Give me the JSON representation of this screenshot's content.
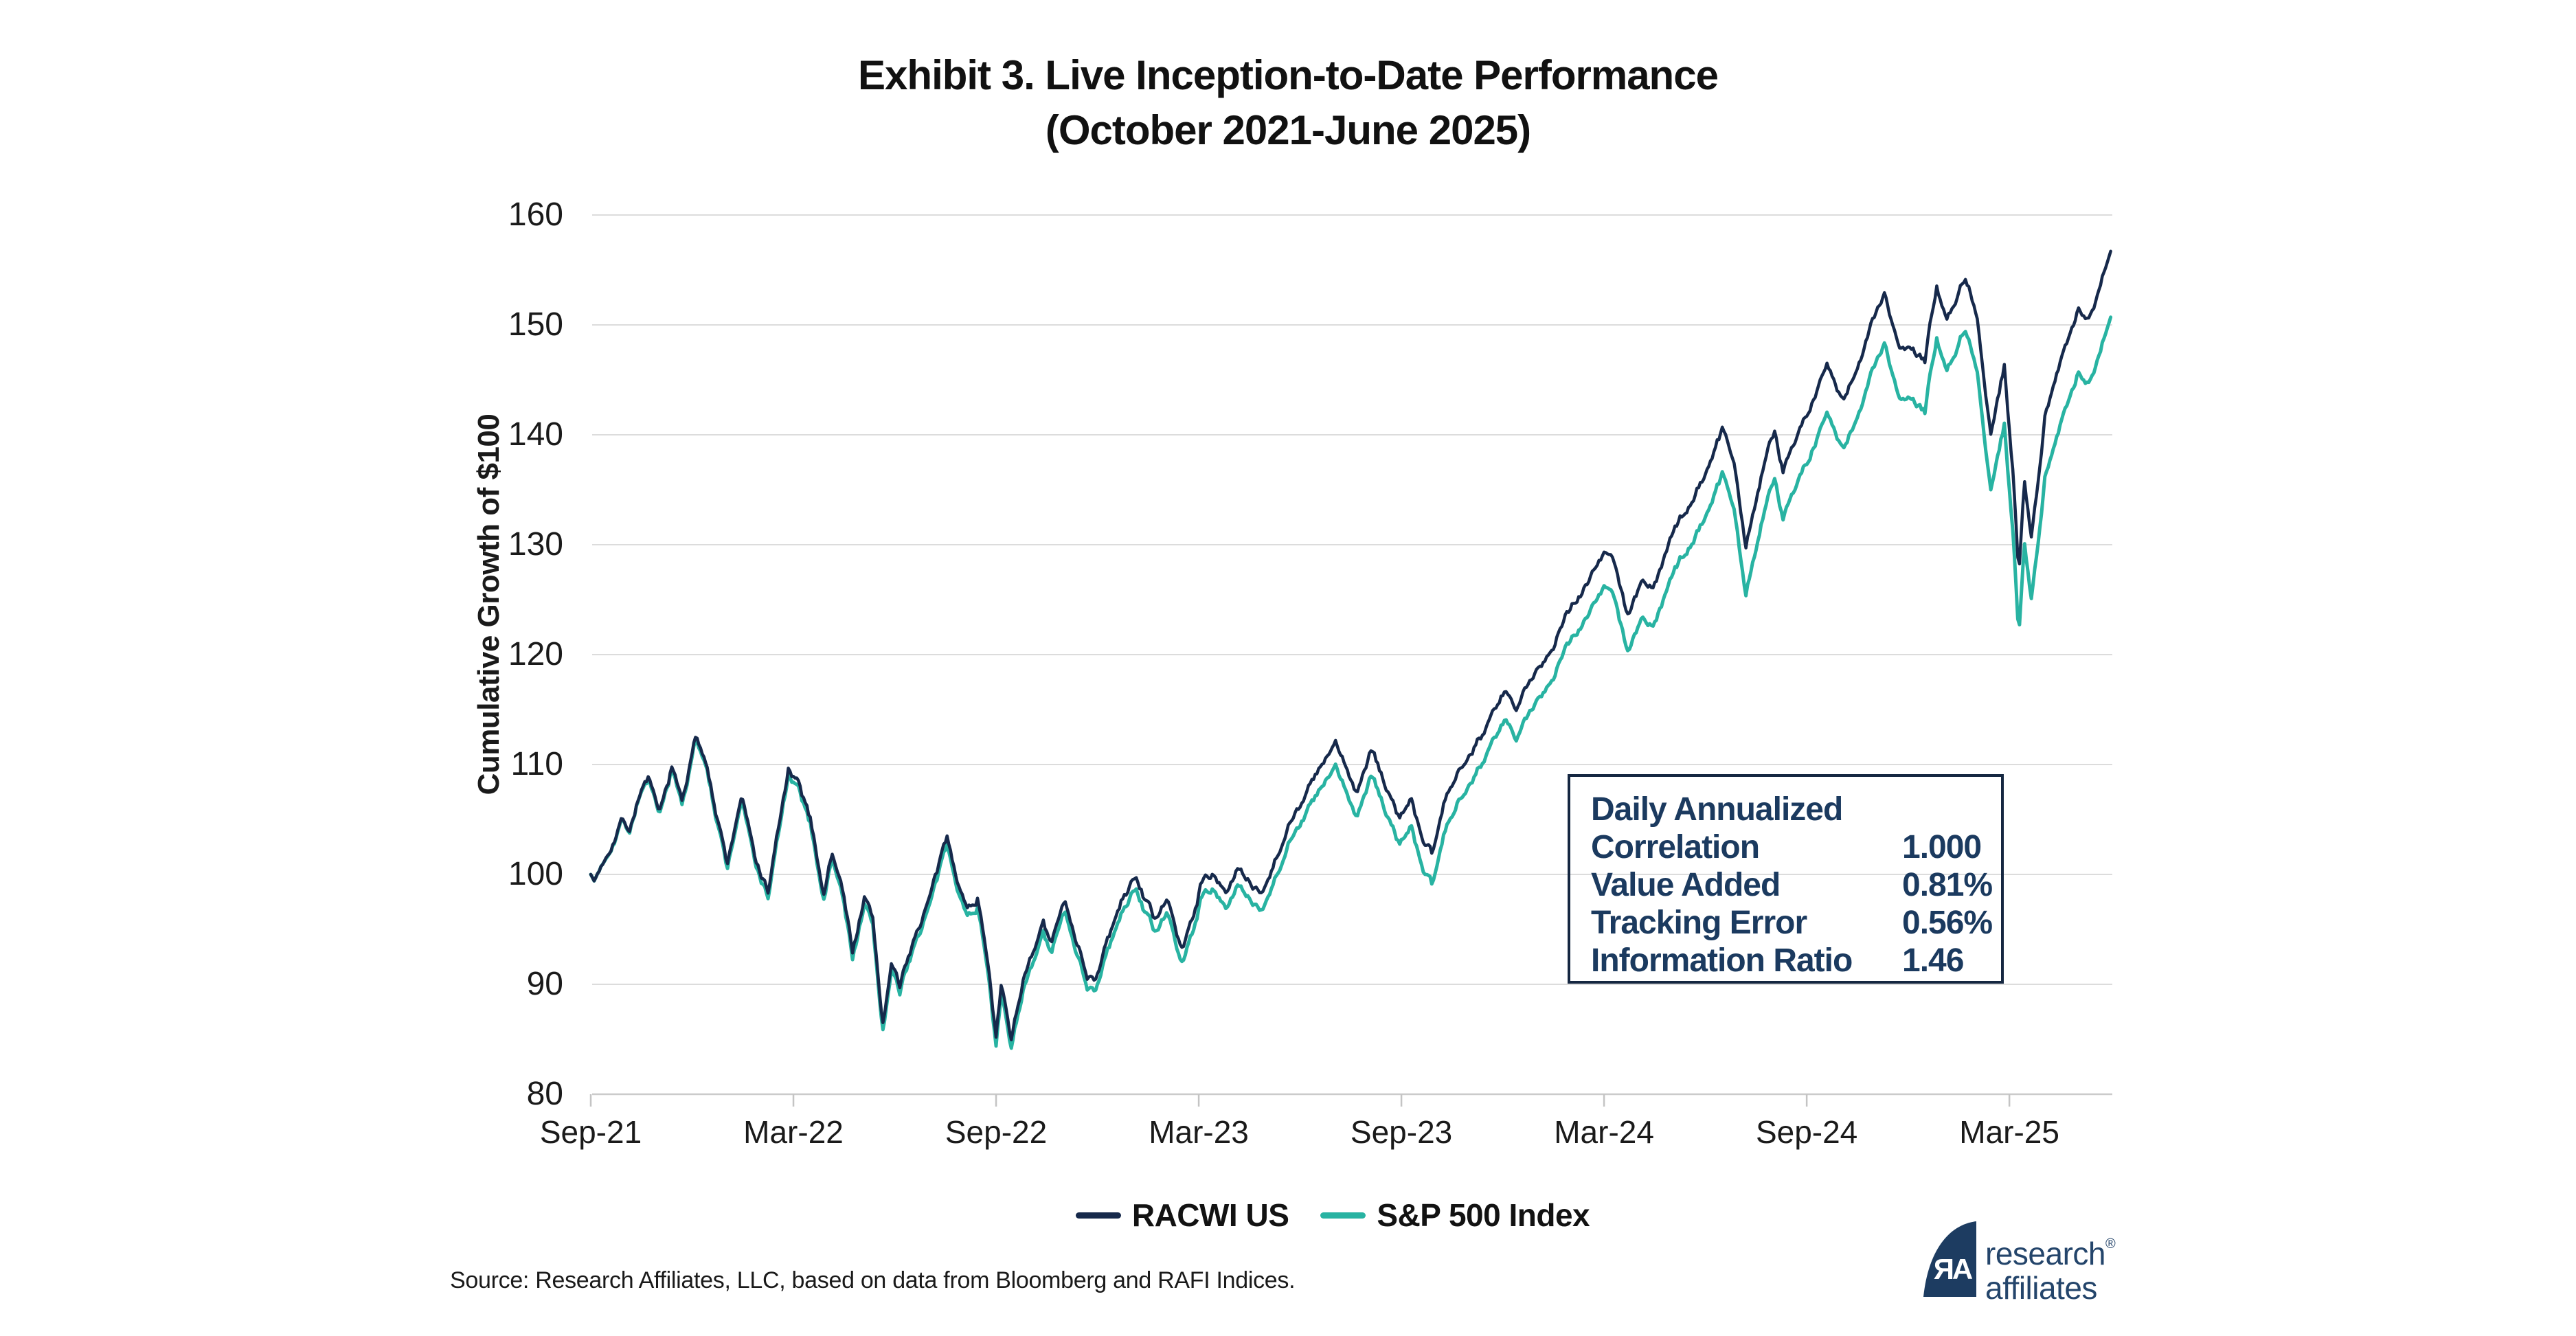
{
  "title": {
    "line1": "Exhibit 3. Live Inception-to-Date Performance",
    "line2": "(October 2021-June 2025)"
  },
  "y_axis": {
    "title": "Cumulative Growth of $100",
    "ticks": [
      80,
      90,
      100,
      110,
      120,
      130,
      140,
      150,
      160
    ]
  },
  "x_axis": {
    "ticks": [
      {
        "label": "Sep-21",
        "t": 0
      },
      {
        "label": "Mar-22",
        "t": 6
      },
      {
        "label": "Sep-22",
        "t": 12
      },
      {
        "label": "Mar-23",
        "t": 18
      },
      {
        "label": "Sep-23",
        "t": 24
      },
      {
        "label": "Mar-24",
        "t": 30
      },
      {
        "label": "Sep-24",
        "t": 36
      },
      {
        "label": "Mar-25",
        "t": 42
      }
    ]
  },
  "stats_box": {
    "header": "Daily Annualized",
    "rows": [
      {
        "label": "Correlation",
        "value": "1.000"
      },
      {
        "label": "Value Added",
        "value": "0.81%"
      },
      {
        "label": "Tracking Error",
        "value": "0.56%"
      },
      {
        "label": "Information Ratio",
        "value": "1.46"
      }
    ]
  },
  "legend": [
    {
      "label": "RACWI US",
      "color": "#16294B"
    },
    {
      "label": "S&P 500 Index",
      "color": "#28B3A2"
    }
  ],
  "source": "Source: Research Affiliates, LLC, based on data from Bloomberg and RAFI Indices.",
  "logo": {
    "word1": "research",
    "word2": "affiliates",
    "reg": "®",
    "monogram": "ЯA",
    "color": "#1d3c61"
  },
  "chart_data": {
    "type": "line",
    "title": "Exhibit 3. Live Inception-to-Date Performance (October 2021-June 2025)",
    "xlabel": "",
    "ylabel": "Cumulative Growth of $100",
    "x_unit": "months since Sep-2021 inception (Oct 2021 - Jun 2025)",
    "xlim": [
      0,
      45
    ],
    "ylim": [
      80,
      160
    ],
    "grid": "horizontal",
    "legend_position": "bottom-center",
    "series": [
      {
        "name": "RACWI US",
        "color": "#16294B",
        "points": [
          [
            0,
            100
          ],
          [
            0.1,
            99.4
          ],
          [
            0.35,
            101
          ],
          [
            0.6,
            102.9
          ],
          [
            0.93,
            105.4
          ],
          [
            1.15,
            104.3
          ],
          [
            1.45,
            107.6
          ],
          [
            1.7,
            109
          ],
          [
            2.03,
            105
          ],
          [
            2.4,
            109.5
          ],
          [
            2.7,
            106.6
          ],
          [
            3.1,
            112.3
          ],
          [
            3.45,
            110.3
          ],
          [
            3.7,
            105.9
          ],
          [
            4.05,
            100.8
          ],
          [
            4.47,
            107.4
          ],
          [
            4.85,
            101.4
          ],
          [
            5.25,
            98.4
          ],
          [
            5.55,
            104
          ],
          [
            5.85,
            109.3
          ],
          [
            6.2,
            107.5
          ],
          [
            6.5,
            104.8
          ],
          [
            6.9,
            98.4
          ],
          [
            7.15,
            102
          ],
          [
            7.45,
            98.6
          ],
          [
            7.75,
            93.1
          ],
          [
            8.1,
            98
          ],
          [
            8.35,
            95.8
          ],
          [
            8.64,
            86.4
          ],
          [
            8.9,
            91.9
          ],
          [
            9.15,
            89.6
          ],
          [
            9.6,
            94.4
          ],
          [
            10.1,
            98.5
          ],
          [
            10.55,
            102.9
          ],
          [
            10.9,
            99.5
          ],
          [
            11.15,
            96.9
          ],
          [
            11.45,
            98.1
          ],
          [
            11.8,
            91.6
          ],
          [
            12,
            85.6
          ],
          [
            12.15,
            89.8
          ],
          [
            12.45,
            85.1
          ],
          [
            12.8,
            90.7
          ],
          [
            13.1,
            92.5
          ],
          [
            13.4,
            95.3
          ],
          [
            13.63,
            93.3
          ],
          [
            14.05,
            97.4
          ],
          [
            14.4,
            94.2
          ],
          [
            14.7,
            91.1
          ],
          [
            14.97,
            90.8
          ],
          [
            15.3,
            93.9
          ],
          [
            15.7,
            97.2
          ],
          [
            16.15,
            100.1
          ],
          [
            16.4,
            97.8
          ],
          [
            16.7,
            96
          ],
          [
            17.05,
            97.5
          ],
          [
            17.5,
            93.2
          ],
          [
            17.8,
            95.9
          ],
          [
            18.05,
            99
          ],
          [
            18.4,
            100.1
          ],
          [
            18.8,
            98.6
          ],
          [
            19.2,
            100.5
          ],
          [
            19.55,
            98.9
          ],
          [
            19.9,
            98.7
          ],
          [
            20.3,
            101.9
          ],
          [
            20.75,
            105.5
          ],
          [
            21.05,
            106.9
          ],
          [
            21.65,
            109.8
          ],
          [
            22.05,
            111.6
          ],
          [
            22.4,
            109.2
          ],
          [
            22.67,
            107.5
          ],
          [
            23.1,
            111.1
          ],
          [
            23.55,
            107.9
          ],
          [
            23.95,
            105
          ],
          [
            24.3,
            107.1
          ],
          [
            24.6,
            103.2
          ],
          [
            24.92,
            101.4
          ],
          [
            25.3,
            106.4
          ],
          [
            26,
            111.5
          ],
          [
            26.6,
            114.2
          ],
          [
            27.1,
            116.5
          ],
          [
            27.4,
            114.7
          ],
          [
            28,
            118.4
          ],
          [
            28.55,
            121.6
          ],
          [
            28.85,
            123.8
          ],
          [
            29.25,
            125.6
          ],
          [
            30,
            129.3
          ],
          [
            30.33,
            128.3
          ],
          [
            30.7,
            123.5
          ],
          [
            31.1,
            127
          ],
          [
            31.45,
            126.1
          ],
          [
            32.05,
            130.9
          ],
          [
            32.65,
            134.4
          ],
          [
            33.2,
            138.2
          ],
          [
            33.52,
            140.6
          ],
          [
            33.85,
            137.4
          ],
          [
            34.2,
            129.8
          ],
          [
            34.75,
            137.7
          ],
          [
            35.05,
            140.5
          ],
          [
            35.3,
            137
          ],
          [
            35.65,
            139.9
          ],
          [
            36.05,
            142.4
          ],
          [
            36.6,
            146.4
          ],
          [
            37.1,
            142.8
          ],
          [
            37.55,
            146.8
          ],
          [
            38.05,
            151
          ],
          [
            38.3,
            152.5
          ],
          [
            38.75,
            147.3
          ],
          [
            39.05,
            148
          ],
          [
            39.5,
            146.7
          ],
          [
            39.85,
            153.7
          ],
          [
            40.15,
            150.7
          ],
          [
            40.68,
            154.7
          ],
          [
            41.05,
            151.1
          ],
          [
            41.45,
            140.4
          ],
          [
            41.85,
            146.2
          ],
          [
            42.1,
            136.5
          ],
          [
            42.28,
            127.5
          ],
          [
            42.45,
            135.6
          ],
          [
            42.65,
            130.2
          ],
          [
            43.05,
            141.8
          ],
          [
            43.35,
            144.4
          ],
          [
            43.7,
            148.3
          ],
          [
            44.05,
            151.8
          ],
          [
            44.35,
            150.5
          ],
          [
            44.75,
            154.4
          ],
          [
            45,
            156.7
          ]
        ]
      },
      {
        "name": "S&P 500 Index",
        "color": "#28B3A2",
        "points": [
          [
            0,
            100
          ],
          [
            0.1,
            99.4
          ],
          [
            0.35,
            101
          ],
          [
            0.6,
            102.8
          ],
          [
            0.93,
            105.3
          ],
          [
            1.15,
            104.2
          ],
          [
            1.45,
            107.5
          ],
          [
            1.7,
            108.8
          ],
          [
            2.03,
            104.8
          ],
          [
            2.4,
            109.3
          ],
          [
            2.7,
            106.3
          ],
          [
            3.1,
            112
          ],
          [
            3.45,
            110
          ],
          [
            3.7,
            105.5
          ],
          [
            4.05,
            100.4
          ],
          [
            4.47,
            107
          ],
          [
            4.85,
            101
          ],
          [
            5.25,
            97.9
          ],
          [
            5.55,
            103.5
          ],
          [
            5.85,
            108.8
          ],
          [
            6.2,
            107
          ],
          [
            6.5,
            104.3
          ],
          [
            6.9,
            97.9
          ],
          [
            7.15,
            101.5
          ],
          [
            7.45,
            98
          ],
          [
            7.75,
            92.5
          ],
          [
            8.1,
            97.4
          ],
          [
            8.35,
            95.2
          ],
          [
            8.64,
            85.8
          ],
          [
            8.9,
            91.3
          ],
          [
            9.15,
            89
          ],
          [
            9.6,
            93.8
          ],
          [
            10.1,
            97.8
          ],
          [
            10.55,
            102.2
          ],
          [
            10.9,
            98.8
          ],
          [
            11.15,
            96.2
          ],
          [
            11.45,
            97.3
          ],
          [
            11.8,
            90.8
          ],
          [
            12,
            84.8
          ],
          [
            12.15,
            89
          ],
          [
            12.45,
            84.3
          ],
          [
            12.8,
            89.8
          ],
          [
            13.1,
            91.6
          ],
          [
            13.4,
            94.4
          ],
          [
            13.63,
            92.4
          ],
          [
            14.05,
            96.5
          ],
          [
            14.4,
            93.2
          ],
          [
            14.7,
            90.1
          ],
          [
            14.97,
            89.8
          ],
          [
            15.3,
            92.9
          ],
          [
            15.7,
            96.1
          ],
          [
            16.15,
            99
          ],
          [
            16.4,
            96.7
          ],
          [
            16.7,
            94.8
          ],
          [
            17.05,
            96.3
          ],
          [
            17.5,
            91.9
          ],
          [
            17.8,
            94.6
          ],
          [
            18.05,
            97.7
          ],
          [
            18.4,
            98.7
          ],
          [
            18.8,
            97.2
          ],
          [
            19.2,
            99
          ],
          [
            19.55,
            97.4
          ],
          [
            19.9,
            97.1
          ],
          [
            20.3,
            100.3
          ],
          [
            20.75,
            103.8
          ],
          [
            21.05,
            105.2
          ],
          [
            21.65,
            107.8
          ],
          [
            22.05,
            109.5
          ],
          [
            22.4,
            107
          ],
          [
            22.67,
            105.3
          ],
          [
            23.1,
            108.8
          ],
          [
            23.55,
            105.6
          ],
          [
            23.95,
            102.6
          ],
          [
            24.3,
            104.6
          ],
          [
            24.6,
            100.6
          ],
          [
            24.92,
            98.6
          ],
          [
            25.3,
            103.6
          ],
          [
            26,
            108.8
          ],
          [
            26.6,
            111.6
          ],
          [
            27.1,
            113.9
          ],
          [
            27.4,
            112
          ],
          [
            28,
            115.6
          ],
          [
            28.55,
            118.8
          ],
          [
            28.85,
            120.9
          ],
          [
            29.25,
            122.6
          ],
          [
            30,
            126.2
          ],
          [
            30.33,
            125.1
          ],
          [
            30.7,
            120.2
          ],
          [
            31.1,
            123.6
          ],
          [
            31.45,
            122.6
          ],
          [
            32.05,
            127.2
          ],
          [
            32.65,
            130.6
          ],
          [
            33.2,
            134.2
          ],
          [
            33.52,
            136.5
          ],
          [
            33.85,
            133.2
          ],
          [
            34.2,
            125.4
          ],
          [
            34.75,
            133.3
          ],
          [
            35.05,
            136.2
          ],
          [
            35.3,
            132.7
          ],
          [
            35.65,
            135.6
          ],
          [
            36.05,
            138
          ],
          [
            36.6,
            142
          ],
          [
            37.1,
            138.4
          ],
          [
            37.55,
            142.3
          ],
          [
            38.05,
            146.5
          ],
          [
            38.3,
            148
          ],
          [
            38.75,
            142.7
          ],
          [
            39.05,
            143.4
          ],
          [
            39.5,
            142.1
          ],
          [
            39.85,
            149
          ],
          [
            40.15,
            146
          ],
          [
            40.68,
            150
          ],
          [
            41.05,
            146.2
          ],
          [
            41.45,
            135.3
          ],
          [
            41.85,
            140.9
          ],
          [
            42.1,
            131
          ],
          [
            42.28,
            121.9
          ],
          [
            42.45,
            130
          ],
          [
            42.65,
            124.6
          ],
          [
            43.05,
            136.2
          ],
          [
            43.35,
            138.7
          ],
          [
            43.7,
            142.6
          ],
          [
            44.05,
            146
          ],
          [
            44.35,
            144.6
          ],
          [
            44.75,
            148.4
          ],
          [
            45,
            150.7
          ]
        ]
      }
    ],
    "render": {
      "dt": 0.05,
      "jitter_amp": 0.62,
      "jitter_decay": 0.86,
      "seed": 7,
      "colors": {
        "grid": "#dcdcdc",
        "axis": "#cbcbcb",
        "tick": "#c4c4c4"
      }
    }
  }
}
